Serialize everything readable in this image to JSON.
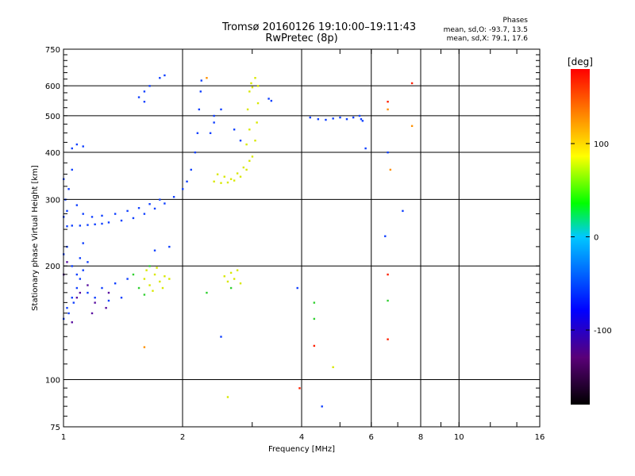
{
  "title_line1": "Tromsø 20160126 19:10:00–19:11:43",
  "title_line2": "RwPretec (8p)",
  "stats": {
    "header": "Phases",
    "line_o": "mean, sd,O: -93.7, 13.5",
    "line_x": "mean, sd,X:  79.1, 17.6"
  },
  "chart_data": {
    "type": "scatter",
    "xlabel": "Frequency [MHz]",
    "ylabel": "Stationary phase Virtual Height [km]",
    "x_scale": "log",
    "y_scale": "log",
    "xlim": [
      1,
      16
    ],
    "ylim": [
      75,
      750
    ],
    "x_ticks": [
      1,
      2,
      4,
      6,
      8,
      10,
      16
    ],
    "y_ticks": [
      75,
      100,
      200,
      300,
      400,
      500,
      600,
      750
    ],
    "grid": true,
    "colorbar": {
      "label": "[deg]",
      "range": [
        -180,
        180
      ],
      "ticks": [
        100,
        0,
        -100
      ],
      "colors": [
        "#000000",
        "#5a0078",
        "#0000ff",
        "#00c8ff",
        "#00ff00",
        "#ffff00",
        "#ff8000",
        "#ff0000"
      ]
    },
    "series": [
      {
        "mode": "O",
        "phase": -95,
        "color": "#1040ff",
        "points": [
          [
            1.02,
            255
          ],
          [
            1.05,
            256
          ],
          [
            1.1,
            256
          ],
          [
            1.15,
            257
          ],
          [
            1.2,
            258
          ],
          [
            1.25,
            259
          ],
          [
            1.3,
            261
          ],
          [
            1.4,
            264
          ],
          [
            1.5,
            268
          ],
          [
            1.6,
            275
          ],
          [
            1.7,
            284
          ],
          [
            1.8,
            293
          ],
          [
            1.9,
            305
          ],
          [
            2.0,
            320
          ],
          [
            2.05,
            335
          ],
          [
            2.1,
            360
          ],
          [
            2.15,
            400
          ],
          [
            2.18,
            450
          ],
          [
            2.2,
            520
          ],
          [
            2.22,
            580
          ],
          [
            2.23,
            620
          ],
          [
            1.0,
            270
          ],
          [
            1.02,
            280
          ],
          [
            1.01,
            300
          ],
          [
            1.03,
            320
          ],
          [
            1.0,
            340
          ],
          [
            1.05,
            360
          ],
          [
            1.08,
            290
          ],
          [
            1.12,
            275
          ],
          [
            1.18,
            270
          ],
          [
            1.25,
            272
          ],
          [
            1.35,
            275
          ],
          [
            1.45,
            280
          ],
          [
            1.55,
            285
          ],
          [
            1.65,
            292
          ],
          [
            1.75,
            300
          ],
          [
            1.0,
            145
          ],
          [
            1.02,
            155
          ],
          [
            1.05,
            165
          ],
          [
            1.08,
            175
          ],
          [
            1.1,
            185
          ],
          [
            1.12,
            195
          ],
          [
            1.15,
            205
          ],
          [
            1.0,
            215
          ],
          [
            1.02,
            225
          ],
          [
            1.05,
            200
          ],
          [
            1.08,
            190
          ],
          [
            1.15,
            170
          ],
          [
            1.2,
            165
          ],
          [
            1.3,
            162
          ],
          [
            1.4,
            165
          ],
          [
            1.25,
            175
          ],
          [
            1.35,
            180
          ],
          [
            1.45,
            185
          ],
          [
            1.03,
            150
          ],
          [
            1.06,
            160
          ],
          [
            1.1,
            210
          ],
          [
            1.12,
            230
          ],
          [
            1.6,
            580
          ],
          [
            1.65,
            600
          ],
          [
            1.75,
            630
          ],
          [
            1.8,
            640
          ],
          [
            1.55,
            560
          ],
          [
            1.6,
            545
          ],
          [
            1.08,
            420
          ],
          [
            1.12,
            415
          ],
          [
            1.05,
            410
          ],
          [
            4.2,
            495
          ],
          [
            4.4,
            490
          ],
          [
            4.6,
            488
          ],
          [
            4.8,
            492
          ],
          [
            5.0,
            495
          ],
          [
            5.2,
            490
          ],
          [
            5.4,
            495
          ],
          [
            5.6,
            500
          ],
          [
            5.65,
            490
          ],
          [
            5.7,
            485
          ],
          [
            3.3,
            555
          ],
          [
            3.35,
            548
          ],
          [
            2.35,
            450
          ],
          [
            2.4,
            480
          ],
          [
            2.4,
            500
          ],
          [
            2.5,
            520
          ],
          [
            2.7,
            460
          ],
          [
            2.8,
            430
          ],
          [
            2.5,
            130
          ],
          [
            1.7,
            220
          ],
          [
            1.85,
            225
          ],
          [
            6.5,
            240
          ],
          [
            4.5,
            85
          ],
          [
            7.2,
            280
          ],
          [
            6.6,
            400
          ],
          [
            5.8,
            410
          ],
          [
            3.9,
            175
          ]
        ]
      },
      {
        "mode": "O-dark",
        "phase": -125,
        "color": "#5a10a0",
        "points": [
          [
            1.1,
            170
          ],
          [
            1.15,
            178
          ],
          [
            1.2,
            160
          ],
          [
            1.28,
            155
          ],
          [
            1.3,
            170
          ],
          [
            1.05,
            142
          ],
          [
            1.0,
            190
          ],
          [
            1.02,
            205
          ],
          [
            1.08,
            165
          ],
          [
            1.18,
            150
          ]
        ]
      },
      {
        "mode": "X",
        "phase": 80,
        "color": "#d8e800",
        "points": [
          [
            2.4,
            335
          ],
          [
            2.5,
            332
          ],
          [
            2.6,
            333
          ],
          [
            2.7,
            337
          ],
          [
            2.8,
            345
          ],
          [
            2.9,
            360
          ],
          [
            3.0,
            390
          ],
          [
            3.05,
            430
          ],
          [
            3.08,
            480
          ],
          [
            3.1,
            540
          ],
          [
            3.1,
            600
          ],
          [
            3.05,
            630
          ],
          [
            2.45,
            350
          ],
          [
            2.55,
            345
          ],
          [
            2.65,
            340
          ],
          [
            2.75,
            352
          ],
          [
            2.85,
            365
          ],
          [
            2.95,
            380
          ],
          [
            2.9,
            420
          ],
          [
            2.95,
            460
          ],
          [
            2.92,
            520
          ],
          [
            2.95,
            580
          ],
          [
            1.6,
            185
          ],
          [
            1.65,
            178
          ],
          [
            1.7,
            190
          ],
          [
            1.75,
            182
          ],
          [
            1.8,
            188
          ],
          [
            1.85,
            185
          ],
          [
            1.62,
            195
          ],
          [
            1.68,
            172
          ],
          [
            1.72,
            198
          ],
          [
            1.78,
            175
          ],
          [
            2.55,
            188
          ],
          [
            2.6,
            182
          ],
          [
            2.65,
            192
          ],
          [
            2.7,
            185
          ],
          [
            2.75,
            195
          ],
          [
            2.8,
            180
          ],
          [
            2.6,
            90
          ],
          [
            4.8,
            108
          ],
          [
            3.0,
            595
          ],
          [
            2.98,
            610
          ]
        ]
      },
      {
        "mode": "X-green",
        "phase": 30,
        "color": "#30d030",
        "points": [
          [
            1.55,
            175
          ],
          [
            1.6,
            168
          ],
          [
            1.65,
            200
          ],
          [
            4.3,
            160
          ],
          [
            4.3,
            145
          ],
          [
            2.3,
            170
          ],
          [
            6.6,
            162
          ],
          [
            1.5,
            190
          ],
          [
            2.65,
            175
          ]
        ]
      },
      {
        "mode": "X-red",
        "phase": 160,
        "color": "#ff2000",
        "points": [
          [
            7.6,
            610
          ],
          [
            6.6,
            545
          ],
          [
            6.6,
            190
          ],
          [
            6.6,
            128
          ],
          [
            4.3,
            123
          ],
          [
            3.95,
            95
          ]
        ]
      },
      {
        "mode": "X-orange",
        "phase": 125,
        "color": "#ff9000",
        "points": [
          [
            6.6,
            520
          ],
          [
            6.7,
            360
          ],
          [
            7.6,
            470
          ],
          [
            1.6,
            122
          ],
          [
            2.3,
            630
          ]
        ]
      }
    ]
  }
}
